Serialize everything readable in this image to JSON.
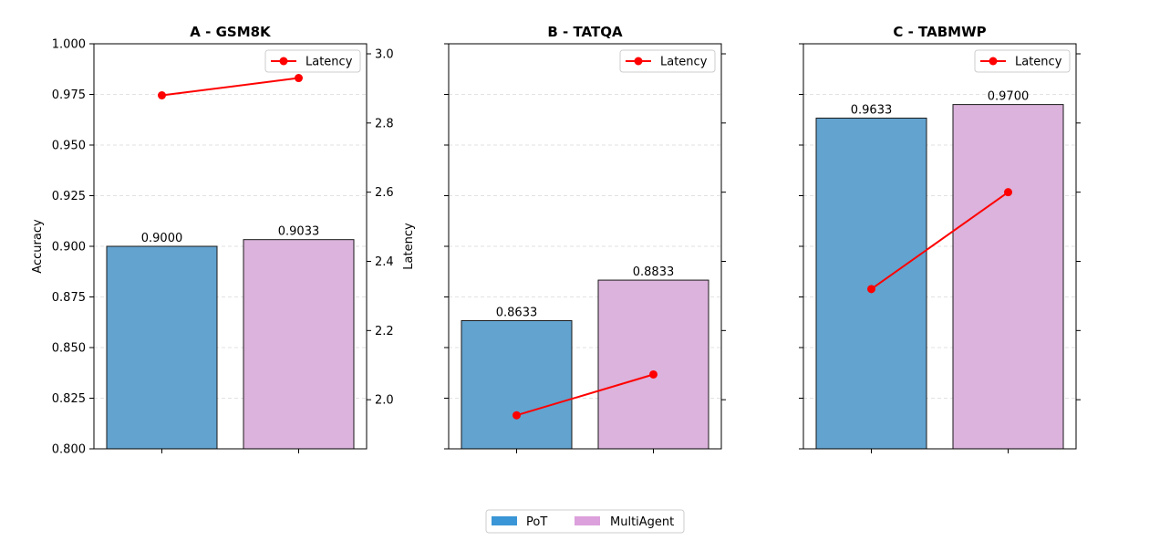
{
  "chart_data": [
    {
      "type": "bar",
      "title": "A - GSM8K",
      "categories": [
        "PoT",
        "MultiAgent"
      ],
      "values": [
        0.9,
        0.9033
      ],
      "value_labels": [
        "0.9000",
        "0.9033"
      ],
      "ylabel": "Accuracy",
      "ylim": [
        0.8,
        1.0
      ],
      "yticks": [
        "0.800",
        "0.825",
        "0.850",
        "0.875",
        "0.900",
        "0.925",
        "0.950",
        "0.975",
        "1.000"
      ],
      "y2label": "Latency",
      "y2ticks": [
        "2.0",
        "2.2",
        "2.4",
        "2.6",
        "2.8",
        "3.0"
      ],
      "latency": [
        2.88,
        2.93
      ],
      "legend": "Latency",
      "legend_position": "top-right",
      "grid": true
    },
    {
      "type": "bar",
      "title": "B - TATQA",
      "categories": [
        "PoT",
        "MultiAgent"
      ],
      "values": [
        0.8633,
        0.8833
      ],
      "value_labels": [
        "0.8633",
        "0.8833"
      ],
      "ylim": [
        0.8,
        1.0
      ],
      "latency": [
        1.955,
        2.073
      ],
      "legend": "Latency",
      "legend_position": "top-right",
      "grid": true
    },
    {
      "type": "bar",
      "title": "C - TABMWP",
      "categories": [
        "PoT",
        "MultiAgent"
      ],
      "values": [
        0.9633,
        0.97
      ],
      "value_labels": [
        "0.9633",
        "0.9700"
      ],
      "ylim": [
        0.8,
        1.0
      ],
      "latency": [
        2.32,
        2.6
      ],
      "legend": "Latency",
      "legend_position": "top-right",
      "grid": true
    }
  ],
  "y2lim": [
    1.858,
    3.029
  ],
  "colors": {
    "pot": "#62a3cf",
    "multiagent": "#dbb3dc",
    "pot_legend": "#3a96d6",
    "multiagent_legend": "#dca0dc",
    "latency": "#ff0000"
  },
  "bottom_legend": {
    "items": [
      "PoT",
      "MultiAgent"
    ],
    "position": "bottom-center"
  }
}
